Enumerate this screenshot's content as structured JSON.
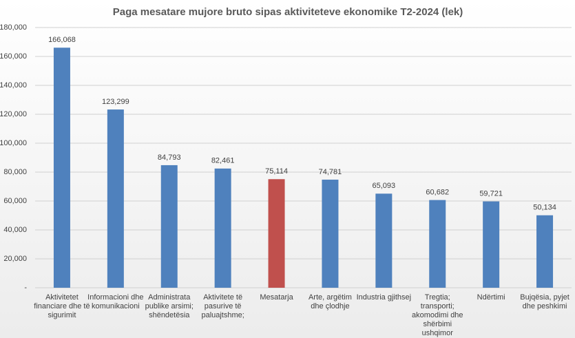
{
  "chart_data": {
    "type": "bar",
    "title": "Paga mesatare mujore bruto sipas aktiviteteve ekonomike T2-2024 (lek)",
    "categories": [
      "Aktivitetet financiare dhe të sigurimit",
      "Informacioni dhe komunikacioni",
      "Administrata publike arsimi; shëndetësia",
      "Aktivitete të pasurive të paluajtshme;",
      "Mesatarja",
      "Arte, argëtim dhe çlodhje",
      "Industria gjithsej",
      "Tregtia; transporti; akomodimi dhe shërbimi ushqimor",
      "Ndërtimi",
      "Bujqësia, pyjet dhe peshkimi"
    ],
    "values": [
      166068,
      123299,
      84793,
      82461,
      75114,
      74781,
      65093,
      60682,
      59721,
      50134
    ],
    "value_labels": [
      "166,068",
      "123,299",
      "84,793",
      "82,461",
      "75,114",
      "74,781",
      "65,093",
      "60,682",
      "59,721",
      "50,134"
    ],
    "colors": [
      "#4f81bd",
      "#4f81bd",
      "#4f81bd",
      "#4f81bd",
      "#c0504d",
      "#4f81bd",
      "#4f81bd",
      "#4f81bd",
      "#4f81bd",
      "#4f81bd"
    ],
    "ylim": [
      0,
      180000
    ],
    "yticks": [
      {
        "value": 0,
        "label": "-"
      },
      {
        "value": 20000,
        "label": "20,000"
      },
      {
        "value": 40000,
        "label": "40,000"
      },
      {
        "value": 60000,
        "label": "60,000"
      },
      {
        "value": 80000,
        "label": "80,000"
      },
      {
        "value": 100000,
        "label": "100,000"
      },
      {
        "value": 120000,
        "label": "120,000"
      },
      {
        "value": 140000,
        "label": "140,000"
      },
      {
        "value": 160000,
        "label": "160,000"
      },
      {
        "value": 180000,
        "label": "180,000"
      }
    ],
    "grid": true
  }
}
